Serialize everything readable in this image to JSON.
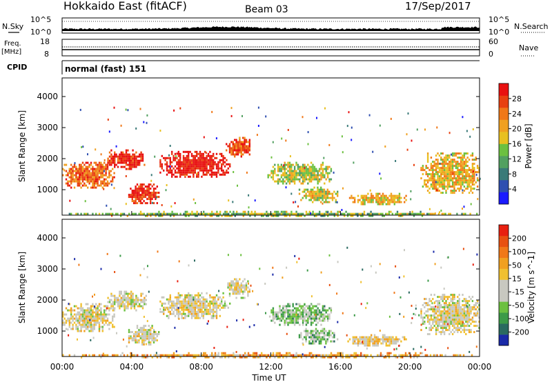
{
  "header": {
    "title": "Hokkaido East (fitACF)",
    "beam": "Beam 03",
    "date": "17/Sep/2017"
  },
  "panels": {
    "nsky": {
      "left_label": "N.Sky",
      "left_ticks": [
        "10^5",
        "10^0"
      ],
      "right_label": "N.Search",
      "right_ticks": [
        "10^5",
        "10^0"
      ]
    },
    "freq": {
      "label_line1": "Freq.",
      "label_line2": "[MHz]",
      "left_ticks": [
        "18",
        "8"
      ],
      "right_label": "Nave",
      "right_ticks": [
        "60",
        "0"
      ]
    },
    "cpid": {
      "label": "CPID",
      "text": "normal (fast) 151"
    }
  },
  "chart_data": [
    {
      "type": "heatmap",
      "name": "power-panel",
      "ylabel": "Slant Range [km]",
      "yticks": [
        1000,
        2000,
        3000,
        4000
      ],
      "ylim": [
        180,
        4600
      ],
      "xlim": [
        0,
        24
      ],
      "colorbar": {
        "label": "Power [dB]",
        "ticks": [
          "4",
          "8",
          "12",
          "16",
          "20",
          "24",
          "28"
        ],
        "colors": [
          "#1a1aff",
          "#2f4fb0",
          "#3a7a78",
          "#52a060",
          "#6cc040",
          "#e8c020",
          "#f0a020",
          "#f07818",
          "#e84010",
          "#e81010"
        ]
      },
      "regions": [
        {
          "t0": 0.0,
          "t1": 3.0,
          "r0": 1100,
          "r1": 1900,
          "level": 0.78
        },
        {
          "t0": 2.5,
          "t1": 4.8,
          "r0": 1700,
          "r1": 2300,
          "level": 0.95
        },
        {
          "t0": 3.8,
          "t1": 5.6,
          "r0": 550,
          "r1": 1200,
          "level": 0.92
        },
        {
          "t0": 5.6,
          "t1": 9.6,
          "r0": 1400,
          "r1": 2250,
          "level": 0.98
        },
        {
          "t0": 9.4,
          "t1": 10.8,
          "r0": 2100,
          "r1": 2700,
          "level": 0.85
        },
        {
          "t0": 11.8,
          "t1": 15.5,
          "r0": 1200,
          "r1": 1900,
          "level": 0.5
        },
        {
          "t0": 13.6,
          "t1": 15.8,
          "r0": 600,
          "r1": 1100,
          "level": 0.55
        },
        {
          "t0": 16.4,
          "t1": 19.8,
          "r0": 550,
          "r1": 900,
          "level": 0.6
        },
        {
          "t0": 20.6,
          "t1": 24.0,
          "r0": 900,
          "r1": 2200,
          "level": 0.62
        },
        {
          "t0": 0.0,
          "t1": 24.0,
          "r0": 180,
          "r1": 320,
          "level": 0.45
        }
      ]
    },
    {
      "type": "heatmap",
      "name": "velocity-panel",
      "xlabel": "Time UT",
      "ylabel": "Slant Range [km]",
      "xticks": [
        "00:00",
        "04:00",
        "08:00",
        "12:00",
        "16:00",
        "20:00",
        "00:00"
      ],
      "yticks": [
        1000,
        2000,
        3000,
        4000
      ],
      "ylim": [
        180,
        4600
      ],
      "xlim": [
        0,
        24
      ],
      "colorbar": {
        "label": "Velocity [m s^-1]",
        "ticks": [
          "200",
          "100",
          "50",
          "15",
          "-15",
          "-50",
          "-100",
          "-200"
        ],
        "colors": [
          "#1a2aa8",
          "#2a6a60",
          "#3c9a48",
          "#6cc040",
          "#c8c8c0",
          "#c8c8c0",
          "#f0c030",
          "#f0a020",
          "#f07818",
          "#e85010",
          "#e82010"
        ]
      },
      "regions": [
        {
          "t0": 0.0,
          "t1": 3.0,
          "r0": 1000,
          "r1": 1900,
          "level": 0.5
        },
        {
          "t0": 2.5,
          "t1": 4.8,
          "r0": 1700,
          "r1": 2300,
          "level": 0.5
        },
        {
          "t0": 3.8,
          "t1": 5.6,
          "r0": 550,
          "r1": 1200,
          "level": 0.5
        },
        {
          "t0": 5.6,
          "t1": 9.6,
          "r0": 1400,
          "r1": 2250,
          "level": 0.5
        },
        {
          "t0": 9.4,
          "t1": 10.8,
          "r0": 2100,
          "r1": 2700,
          "level": 0.5
        },
        {
          "t0": 11.8,
          "t1": 15.5,
          "r0": 1200,
          "r1": 1900,
          "level": 0.34
        },
        {
          "t0": 13.6,
          "t1": 15.8,
          "r0": 600,
          "r1": 1100,
          "level": 0.34
        },
        {
          "t0": 16.4,
          "t1": 19.8,
          "r0": 550,
          "r1": 900,
          "level": 0.55
        },
        {
          "t0": 20.6,
          "t1": 24.0,
          "r0": 900,
          "r1": 2200,
          "level": 0.5
        },
        {
          "t0": 0.0,
          "t1": 24.0,
          "r0": 180,
          "r1": 320,
          "level": 0.66
        }
      ]
    }
  ]
}
